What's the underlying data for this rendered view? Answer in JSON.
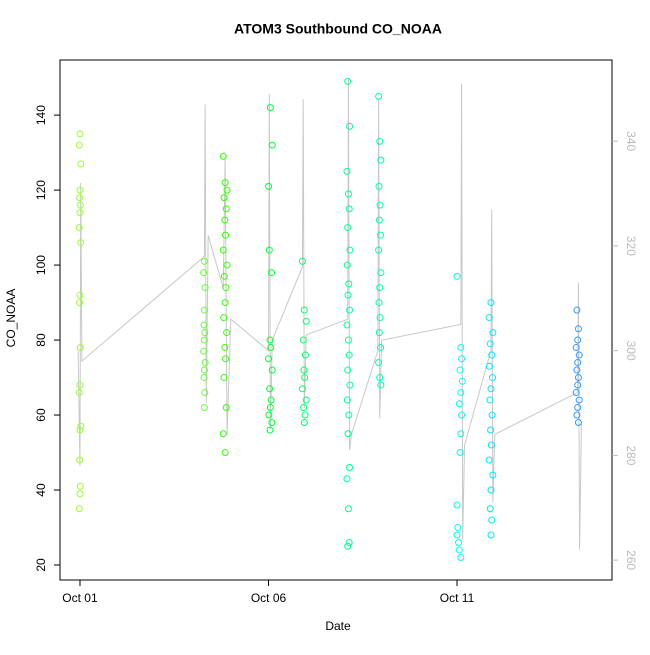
{
  "chart_data": {
    "type": "scatter",
    "title": "ATOM3 Southbound CO_NOAA",
    "x_label": "Date",
    "y_label": "CO_NOAA",
    "xlim": [
      0.47,
      15.11
    ],
    "ylim": [
      16,
      154.7
    ],
    "y2lim": [
      256.2,
      355.5
    ],
    "xticks": [
      {
        "value": 1,
        "label": "Oct 01"
      },
      {
        "value": 6,
        "label": "Oct 06"
      },
      {
        "value": 11,
        "label": "Oct 11"
      }
    ],
    "yticks": [
      20,
      40,
      60,
      80,
      100,
      120,
      140
    ],
    "y2ticks": [
      260,
      280,
      300,
      320,
      340
    ],
    "series": [
      {
        "type": "line",
        "axis": "y2",
        "color": "#c8c8c8",
        "x": [
          0.95,
          1.0,
          1.02,
          1.05,
          4.3,
          4.32,
          4.35,
          4.4,
          4.8,
          4.85,
          4.9,
          5.0,
          6.0,
          6.02,
          6.05,
          6.1,
          6.9,
          6.92,
          6.95,
          7.0,
          8.1,
          8.12,
          8.15,
          8.2,
          8.9,
          8.92,
          8.95,
          9.0,
          11.1,
          11.12,
          11.15,
          11.2,
          11.9,
          11.92,
          11.95,
          12.0,
          14.2,
          14.22,
          14.25,
          14.3
        ],
        "values": [
          300,
          278,
          332,
          298,
          318,
          347,
          290,
          322,
          312,
          337,
          284,
          306,
          300,
          349,
          285,
          302,
          316,
          348,
          289,
          303,
          306,
          352,
          281,
          284,
          300,
          348,
          287,
          302,
          305,
          351,
          264,
          282,
          300,
          327,
          271,
          284,
          292,
          313,
          262,
          286
        ]
      },
      {
        "color": "#99ff33",
        "x": [
          1.0,
          0.98,
          1.02,
          1.0,
          0.99,
          1.01,
          1.0,
          0.98,
          1.02,
          1.0,
          0.99,
          1.01,
          1.0,
          0.98,
          1.02,
          1.0,
          0.99,
          1.01,
          1.0,
          0.98
        ],
        "values": [
          135,
          132,
          127,
          120,
          118,
          116,
          114,
          110,
          106,
          92,
          90,
          78,
          68,
          66,
          57,
          56,
          48,
          41,
          39,
          35
        ]
      },
      {
        "color": "#66ff33",
        "x": [
          4.3,
          4.28,
          4.32,
          4.3,
          4.29,
          4.31,
          4.3,
          4.28,
          4.32,
          4.3,
          4.29,
          4.31,
          4.3
        ],
        "values": [
          101,
          98,
          94,
          88,
          84,
          82,
          80,
          77,
          74,
          72,
          70,
          66,
          62
        ]
      },
      {
        "color": "#33ff00",
        "x": [
          4.8,
          4.85,
          4.9,
          4.82,
          4.88,
          4.84,
          4.86,
          4.8,
          4.9,
          4.83,
          4.87,
          4.85,
          4.81,
          4.89,
          4.84,
          4.86,
          4.82,
          4.88,
          4.8,
          4.85
        ],
        "values": [
          129,
          122,
          120,
          118,
          115,
          112,
          108,
          104,
          100,
          97,
          94,
          90,
          86,
          82,
          78,
          75,
          70,
          62,
          55,
          50
        ]
      },
      {
        "color": "#00ff33",
        "x": [
          6.05,
          6.1,
          6.0,
          6.02,
          6.08,
          6.04,
          6.06,
          6.0,
          6.1,
          6.03,
          6.07,
          6.05,
          6.01,
          6.09,
          6.04
        ],
        "values": [
          142,
          132,
          121,
          104,
          98,
          80,
          78,
          75,
          72,
          67,
          64,
          62,
          60,
          58,
          56
        ]
      },
      {
        "color": "#00ff66",
        "x": [
          6.9,
          6.95,
          7.0,
          6.92,
          6.98,
          6.94,
          6.96,
          6.9,
          7.0,
          6.93,
          6.97,
          6.95
        ],
        "values": [
          101,
          88,
          85,
          80,
          76,
          72,
          70,
          67,
          64,
          62,
          60,
          58
        ]
      },
      {
        "color": "#00ff99",
        "x": [
          8.1,
          8.15,
          8.08,
          8.12,
          8.14,
          8.1,
          8.16,
          8.09,
          8.13,
          8.11,
          8.15,
          8.08,
          8.12,
          8.14,
          8.1,
          8.16,
          8.09,
          8.13,
          8.11,
          8.15,
          8.08,
          8.12,
          8.14,
          8.1
        ],
        "values": [
          149,
          137,
          125,
          119,
          115,
          110,
          104,
          100,
          95,
          92,
          88,
          84,
          80,
          76,
          72,
          68,
          64,
          60,
          55,
          46,
          43,
          35,
          26,
          25
        ]
      },
      {
        "color": "#00ffaa",
        "x": [
          8.92,
          8.95,
          8.98,
          8.93,
          8.96,
          8.94,
          8.97,
          8.92,
          8.98,
          8.95,
          8.93,
          8.96,
          8.94,
          8.97,
          8.92,
          8.95,
          8.98
        ],
        "values": [
          145,
          133,
          128,
          121,
          116,
          112,
          108,
          104,
          98,
          94,
          90,
          86,
          82,
          78,
          74,
          70,
          68
        ]
      },
      {
        "color": "#00ffee",
        "x": [
          11.0,
          11.1,
          11.12,
          11.08,
          11.14,
          11.1,
          11.06,
          11.12,
          11.1,
          11.08,
          11.0,
          11.02,
          11.0,
          11.04,
          11.06,
          11.1
        ],
        "values": [
          97,
          78,
          75,
          72,
          69,
          66,
          63,
          60,
          55,
          50,
          36,
          30,
          28,
          26,
          24,
          22
        ]
      },
      {
        "color": "#00e5ff",
        "x": [
          11.9,
          11.85,
          11.95,
          11.88,
          11.92,
          11.86,
          11.94,
          11.9,
          11.87,
          11.93,
          11.89,
          11.91,
          11.85,
          11.95,
          11.9,
          11.88,
          11.92,
          11.9
        ],
        "values": [
          90,
          86,
          82,
          79,
          76,
          73,
          70,
          67,
          64,
          60,
          56,
          52,
          48,
          44,
          40,
          35,
          32,
          28
        ]
      },
      {
        "color": "#3399ff",
        "x": [
          14.18,
          14.22,
          14.2,
          14.16,
          14.24,
          14.2,
          14.18,
          14.22,
          14.2,
          14.16,
          14.24,
          14.2,
          14.18,
          14.22
        ],
        "values": [
          88,
          83,
          80,
          78,
          76,
          74,
          72,
          70,
          68,
          66,
          64,
          62,
          60,
          58
        ]
      }
    ]
  }
}
